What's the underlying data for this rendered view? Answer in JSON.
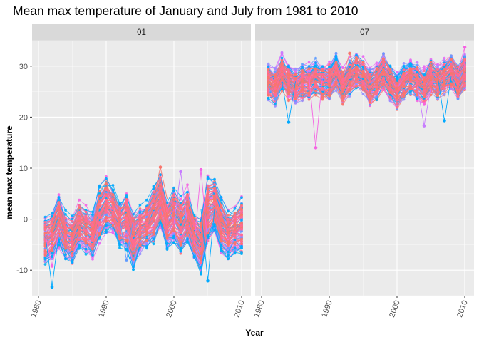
{
  "chart_data": {
    "type": "line",
    "title": "Mean max temperature of January and July from 1981 to 2010",
    "xlabel": "Year",
    "ylabel": "mean max temperature",
    "xlim": [
      1980,
      2010
    ],
    "ylim": [
      -15,
      35
    ],
    "x_ticks": [
      1980,
      1990,
      2000,
      2010
    ],
    "y_ticks": [
      -10,
      0,
      10,
      20,
      30
    ],
    "grid": true,
    "legend": "none",
    "facets": [
      {
        "label": "01",
        "summary": {
          "years": [
            1981,
            1982,
            1983,
            1984,
            1985,
            1986,
            1987,
            1988,
            1989,
            1990,
            1991,
            1992,
            1993,
            1994,
            1995,
            1996,
            1997,
            1998,
            1999,
            2000,
            2001,
            2002,
            2003,
            2004,
            2005,
            2006,
            2007,
            2008,
            2009,
            2010
          ],
          "center": [
            -4,
            -3,
            0,
            -3,
            -4,
            -1,
            -2,
            -3,
            1,
            3,
            2,
            -1,
            0,
            -4,
            -2,
            -1,
            1,
            4,
            -1,
            1,
            -1,
            1,
            -3,
            -5,
            2,
            3,
            -1,
            -3,
            -2,
            -1
          ],
          "spread": [
            4,
            4,
            5,
            4,
            4,
            4,
            4,
            4,
            5,
            5,
            4,
            4,
            5,
            5,
            4,
            4,
            5,
            5,
            4,
            5,
            5,
            5,
            4,
            5,
            6,
            5,
            5,
            4,
            4,
            5
          ]
        },
        "highlights": [
          {
            "x": 1982,
            "y": -13.3
          },
          {
            "x": 1982,
            "y": -9.2
          },
          {
            "x": 1993,
            "y": -8.1
          },
          {
            "x": 1998,
            "y": 10.2
          },
          {
            "x": 2001,
            "y": 9.3
          },
          {
            "x": 2005,
            "y": -12.1
          },
          {
            "x": 2004,
            "y": 9.7
          }
        ]
      },
      {
        "label": "07",
        "summary": {
          "years": [
            1981,
            1982,
            1983,
            1984,
            1985,
            1986,
            1987,
            1988,
            1989,
            1990,
            1991,
            1992,
            1993,
            1994,
            1995,
            1996,
            1997,
            1998,
            1999,
            2000,
            2001,
            2002,
            2003,
            2004,
            2005,
            2006,
            2007,
            2008,
            2009,
            2010
          ],
          "center": [
            27,
            26,
            29,
            27,
            26,
            27,
            27,
            28,
            27,
            27,
            29,
            26,
            28,
            29,
            28,
            26,
            27,
            29,
            27,
            25,
            27,
            28,
            27,
            26,
            28,
            27,
            28,
            29,
            27,
            29
          ],
          "spread": [
            3,
            3,
            3,
            3,
            3,
            3,
            3,
            3,
            3,
            3,
            3,
            3,
            3,
            3,
            3,
            3,
            3,
            3,
            3,
            3,
            3,
            3,
            3,
            3,
            3,
            3,
            3,
            3,
            3,
            3
          ]
        },
        "highlights": [
          {
            "x": 1984,
            "y": 19.0
          },
          {
            "x": 1988,
            "y": 14.0
          },
          {
            "x": 1982,
            "y": 23.5
          },
          {
            "x": 1993,
            "y": 32.5
          },
          {
            "x": 2004,
            "y": 18.3
          },
          {
            "x": 2007,
            "y": 19.3
          },
          {
            "x": 2010,
            "y": 33.7
          }
        ]
      }
    ],
    "palette": [
      "#F8766D",
      "#FF6C91",
      "#F564E3",
      "#E76BF3",
      "#C77CFF",
      "#9590FF",
      "#619CFF",
      "#00A9FF",
      "#00B0F6"
    ]
  }
}
